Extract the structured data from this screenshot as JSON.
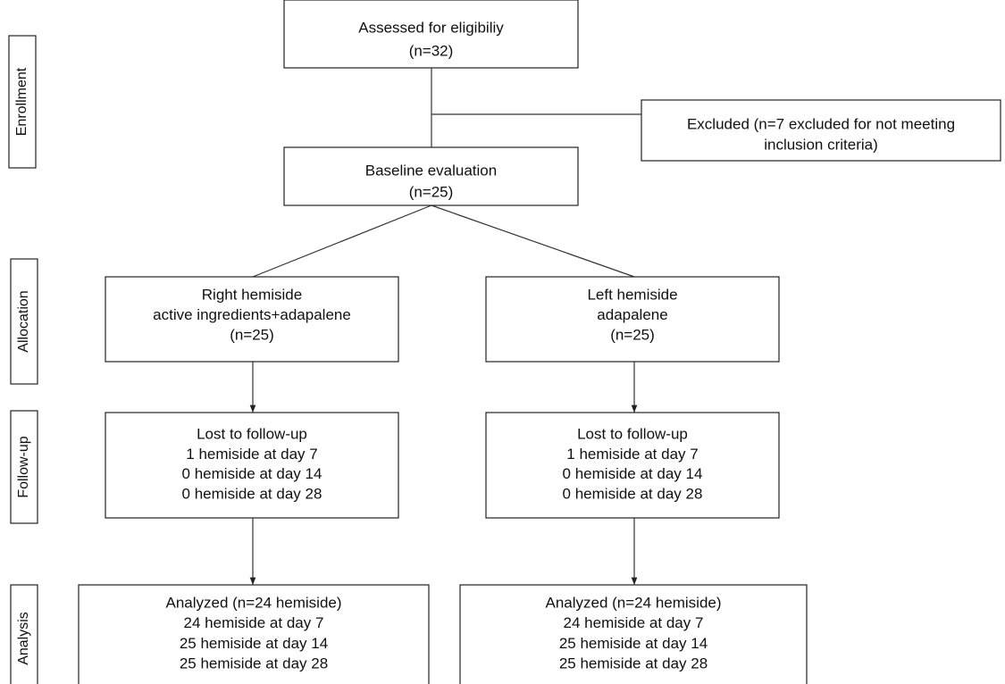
{
  "stages": [
    "Enrollment",
    "Allocation",
    "Follow-up",
    "Analysis"
  ],
  "nodes": [
    {
      "lines": [
        "Assessed for eligibiliy",
        "(n=32)"
      ]
    },
    {
      "lines": [
        "Excluded (n=7 excluded for not meeting",
        "inclusion criteria)"
      ]
    },
    {
      "lines": [
        "Baseline evaluation",
        "(n=25)"
      ]
    },
    {
      "lines": [
        "Right hemiside",
        "active ingredients+adapalene",
        "(n=25)"
      ]
    },
    {
      "lines": [
        "Left hemiside",
        "adapalene",
        "(n=25)"
      ]
    },
    {
      "lines": [
        "Lost to follow-up",
        "1 hemiside at day 7",
        "0 hemiside at day 14",
        "0 hemiside at day 28"
      ]
    },
    {
      "lines": [
        "Lost to follow-up",
        "1 hemiside at day 7",
        "0 hemiside at day 14",
        "0 hemiside at day 28"
      ]
    },
    {
      "lines": [
        "Analyzed (n=24 hemiside)",
        "24 hemiside at day 7",
        "25 hemiside at day 14",
        "25 hemiside at day 28"
      ]
    },
    {
      "lines": [
        "Analyzed (n=24 hemiside)",
        "24 hemiside at day 7",
        "25 hemiside at day 14",
        "25 hemiside at day 28"
      ]
    }
  ]
}
